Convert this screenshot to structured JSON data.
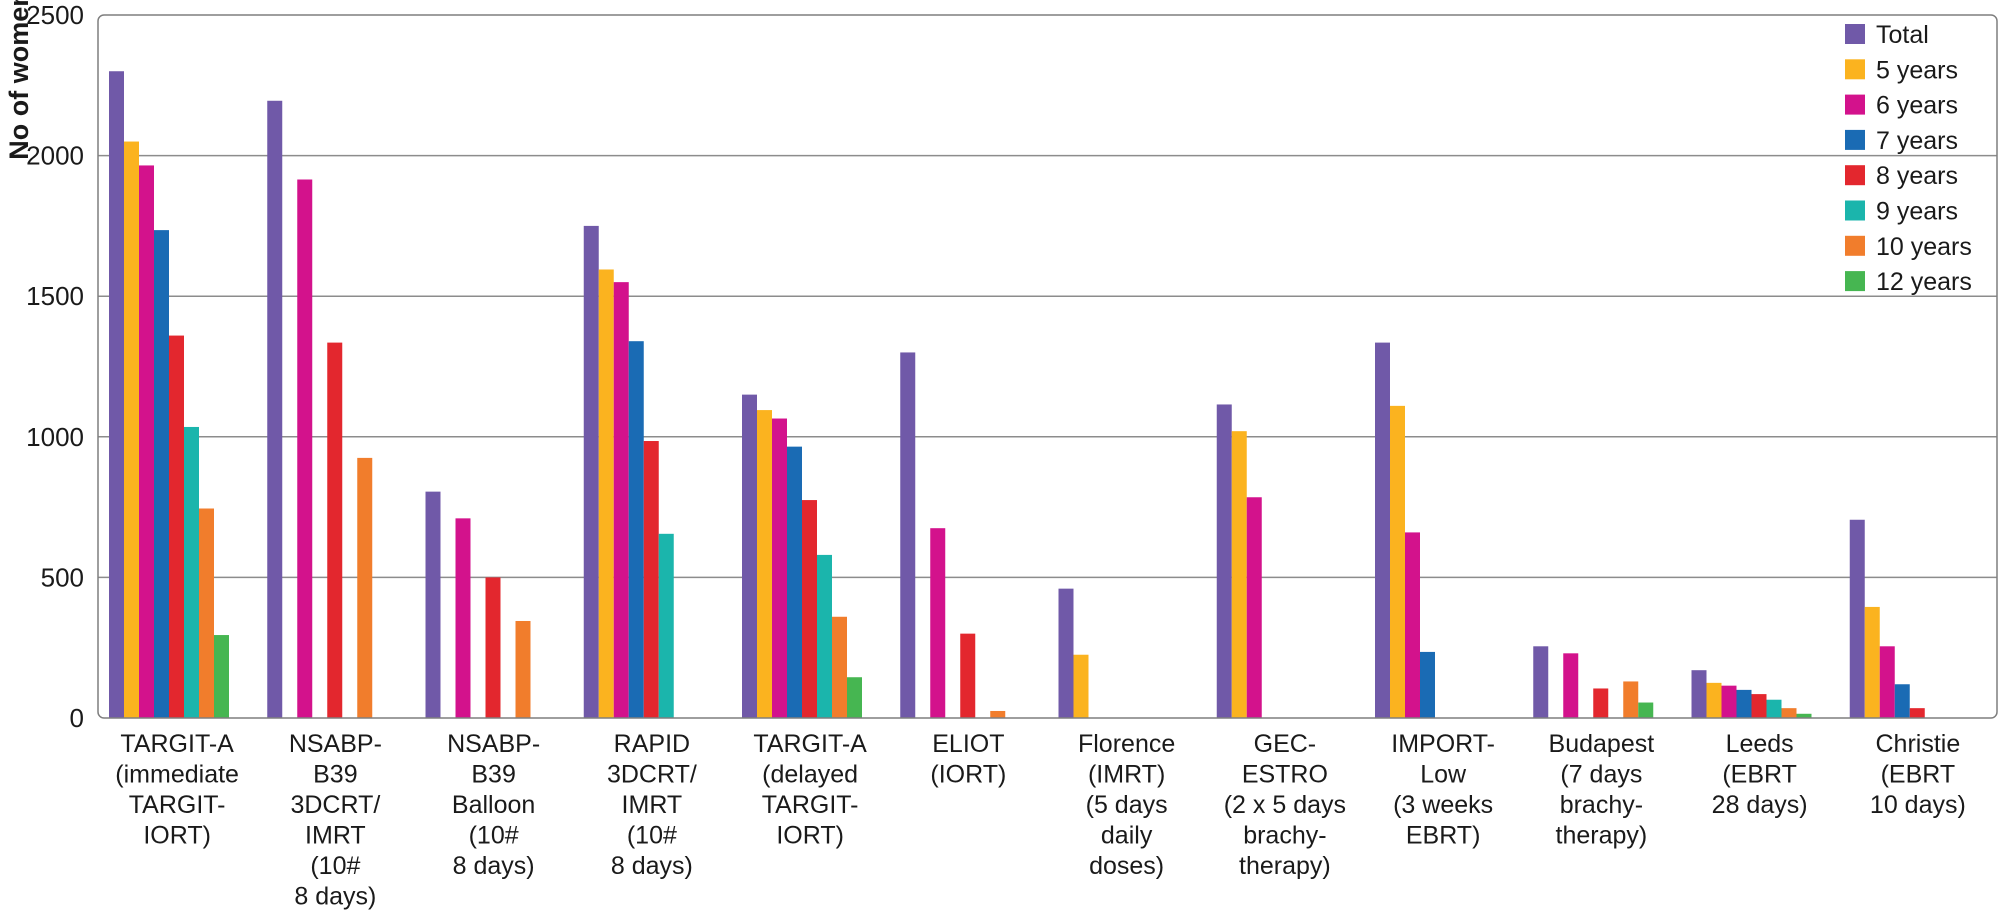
{
  "chart_data": {
    "type": "bar",
    "ylabel": "No of women",
    "ylim": [
      0,
      2500
    ],
    "yticks": [
      0,
      500,
      1000,
      1500,
      2000,
      2500
    ],
    "grid": true,
    "legend_position": "top-right",
    "categories": [
      [
        "TARGIT-A",
        "(immediate",
        "TARGIT-",
        "IORT)"
      ],
      [
        "NSABP-",
        "B39",
        "3DCRT/",
        "IMRT",
        "(10#",
        "8 days)"
      ],
      [
        "NSABP-",
        "B39",
        "Balloon",
        "(10#",
        "8 days)"
      ],
      [
        "RAPID",
        "3DCRT/",
        "IMRT",
        "(10#",
        "8 days)"
      ],
      [
        "TARGIT-A",
        "(delayed",
        "TARGIT-",
        "IORT)"
      ],
      [
        "ELIOT",
        "(IORT)"
      ],
      [
        "Florence",
        "(IMRT)",
        "(5 days",
        "daily",
        "doses)"
      ],
      [
        "GEC-",
        "ESTRO",
        "(2 x 5 days",
        "brachy-",
        "therapy)"
      ],
      [
        "IMPORT-",
        "Low",
        "(3 weeks",
        "EBRT)"
      ],
      [
        "Budapest",
        "(7 days",
        "brachy-",
        "therapy)"
      ],
      [
        "Leeds",
        "(EBRT",
        "28 days)"
      ],
      [
        "Christie",
        "(EBRT",
        "10 days)"
      ]
    ],
    "series": [
      {
        "name": "Total",
        "color": "#7059a8",
        "values": [
          2300,
          2195,
          805,
          1750,
          1150,
          1300,
          460,
          1115,
          1335,
          255,
          170,
          705
        ]
      },
      {
        "name": "5 years",
        "color": "#fbb31f",
        "values": [
          2050,
          null,
          null,
          1595,
          1095,
          null,
          225,
          1020,
          1110,
          null,
          125,
          395
        ]
      },
      {
        "name": "6 years",
        "color": "#d3128c",
        "values": [
          1965,
          1915,
          710,
          1550,
          1065,
          675,
          null,
          785,
          660,
          230,
          115,
          255
        ]
      },
      {
        "name": "7 years",
        "color": "#1a6bb4",
        "values": [
          1735,
          null,
          null,
          1340,
          965,
          null,
          null,
          null,
          235,
          null,
          100,
          120
        ]
      },
      {
        "name": "8 years",
        "color": "#e3272e",
        "values": [
          1360,
          1335,
          500,
          985,
          775,
          300,
          null,
          null,
          null,
          105,
          85,
          35
        ]
      },
      {
        "name": "9 years",
        "color": "#1bb5ac",
        "values": [
          1035,
          null,
          null,
          655,
          580,
          null,
          null,
          null,
          null,
          null,
          65,
          null
        ]
      },
      {
        "name": "10 years",
        "color": "#f17d2c",
        "values": [
          745,
          925,
          345,
          null,
          360,
          25,
          null,
          null,
          null,
          130,
          35,
          null
        ]
      },
      {
        "name": "12 years",
        "color": "#46b651",
        "values": [
          295,
          null,
          null,
          null,
          145,
          null,
          null,
          null,
          null,
          55,
          15,
          null
        ]
      }
    ]
  }
}
